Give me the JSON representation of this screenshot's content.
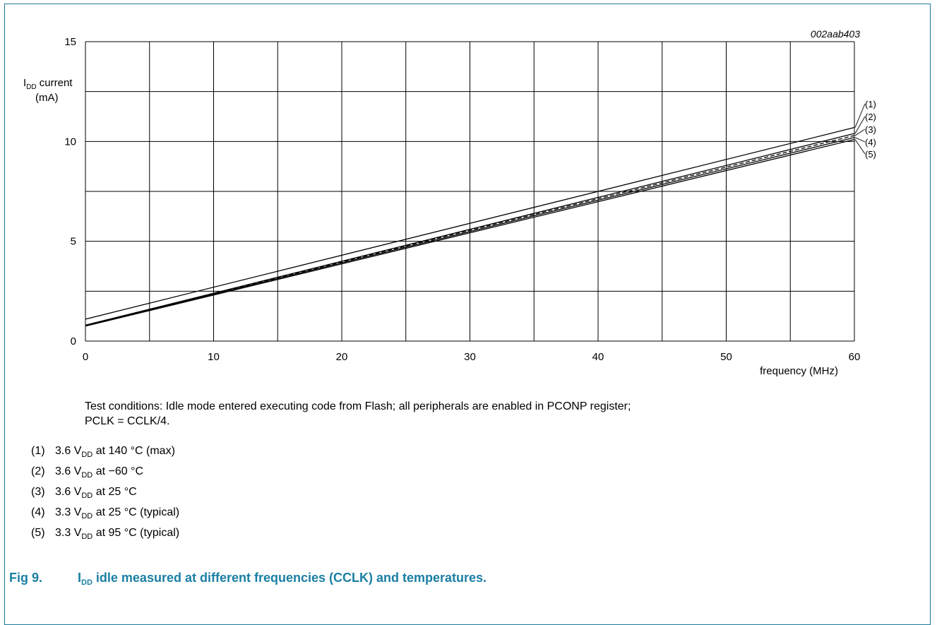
{
  "figure_code": "002aab403",
  "chart_data": {
    "type": "line",
    "ylabel_main": "I",
    "ylabel_sub": "DD",
    "ylabel_rest": " current",
    "yunit": "(mA)",
    "xlabel": "frequency (MHz)",
    "xlim": [
      0,
      60
    ],
    "ylim": [
      0,
      15
    ],
    "xticks": [
      0,
      10,
      20,
      30,
      40,
      50,
      60
    ],
    "yticks": [
      0,
      5,
      10,
      15
    ],
    "x_grid_step": 5,
    "y_grid_step": 2.5,
    "grid": true,
    "x": [
      0,
      60
    ],
    "series": [
      {
        "label": "(1)",
        "values": [
          1.1,
          10.7
        ]
      },
      {
        "label": "(2)",
        "values": [
          0.8,
          10.4
        ]
      },
      {
        "label": "(3)",
        "values": [
          0.8,
          10.3
        ],
        "dashed": true
      },
      {
        "label": "(4)",
        "values": [
          0.78,
          10.2
        ]
      },
      {
        "label": "(5)",
        "values": [
          0.75,
          10.1
        ]
      }
    ]
  },
  "test_conditions_line1": "Test conditions: Idle mode entered executing code from Flash; all peripherals are enabled in PCONP register;",
  "test_conditions_line2": "PCLK = CCLK/4.",
  "legend": [
    {
      "num": "(1)",
      "a": "3.6 V",
      "sub": "DD",
      "b": " at 140 °C (max)"
    },
    {
      "num": "(2)",
      "a": "3.6 V",
      "sub": "DD",
      "b": " at −60 °C"
    },
    {
      "num": "(3)",
      "a": "3.6 V",
      "sub": "DD",
      "b": " at 25 °C"
    },
    {
      "num": "(4)",
      "a": "3.3 V",
      "sub": "DD",
      "b": " at 25 °C (typical)"
    },
    {
      "num": "(5)",
      "a": "3.3 V",
      "sub": "DD",
      "b": " at 95 °C (typical)"
    }
  ],
  "caption": {
    "number": "Fig 9.",
    "i": "I",
    "sub": "DD",
    "text": " idle measured at different frequencies (CCLK) and temperatures."
  }
}
